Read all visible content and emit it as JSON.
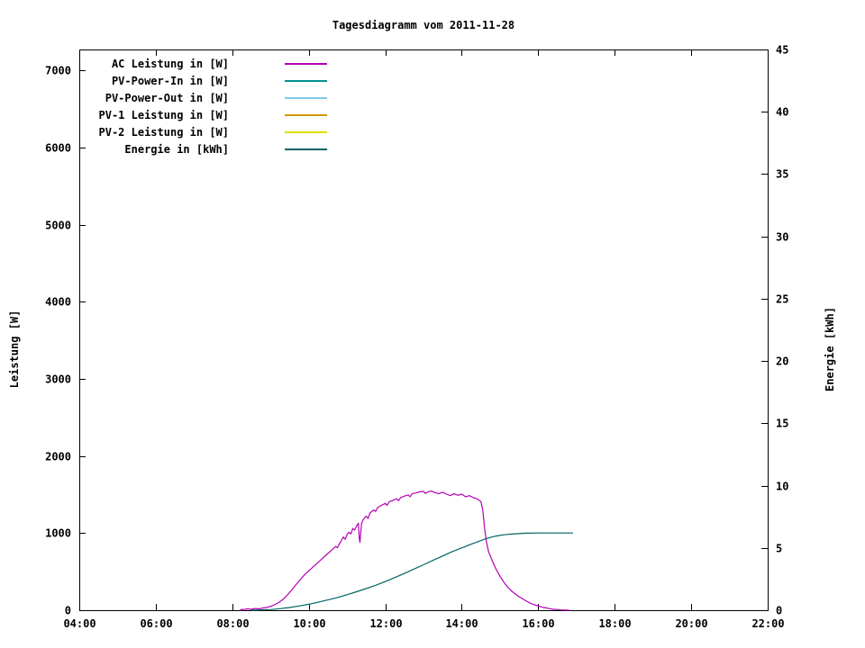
{
  "chart_data": {
    "type": "line",
    "title": "Tagesdiagramm vom 2011-11-28",
    "x_axis": {
      "tick_labels": [
        "04:00",
        "06:00",
        "08:00",
        "10:00",
        "12:00",
        "14:00",
        "16:00",
        "18:00",
        "20:00",
        "22:00"
      ],
      "tick_hours": [
        4,
        6,
        8,
        10,
        12,
        14,
        16,
        18,
        20,
        22
      ],
      "min_hour": 4,
      "max_hour": 22
    },
    "left_axis": {
      "label": "Leistung [W]",
      "ticks": [
        0,
        1000,
        2000,
        3000,
        4000,
        5000,
        6000,
        7000
      ],
      "min": 0,
      "max": 7270
    },
    "right_axis": {
      "label": "Energie [kWh]",
      "ticks": [
        0,
        5,
        10,
        15,
        20,
        25,
        30,
        35,
        40,
        45
      ],
      "min": 0,
      "max": 45
    },
    "grid": false,
    "legend_position": "top-left-inside",
    "series": [
      {
        "name": "AC Leistung in [W]",
        "color": "#b400b4",
        "axis": "left",
        "points": [
          [
            8.2,
            0
          ],
          [
            8.25,
            12
          ],
          [
            8.3,
            8
          ],
          [
            8.4,
            18
          ],
          [
            8.5,
            12
          ],
          [
            8.6,
            22
          ],
          [
            8.7,
            18
          ],
          [
            8.8,
            28
          ],
          [
            8.9,
            35
          ],
          [
            9.0,
            50
          ],
          [
            9.1,
            70
          ],
          [
            9.2,
            95
          ],
          [
            9.3,
            130
          ],
          [
            9.4,
            175
          ],
          [
            9.5,
            230
          ],
          [
            9.6,
            290
          ],
          [
            9.7,
            350
          ],
          [
            9.8,
            410
          ],
          [
            9.9,
            465
          ],
          [
            10.0,
            510
          ],
          [
            10.1,
            555
          ],
          [
            10.2,
            600
          ],
          [
            10.3,
            645
          ],
          [
            10.4,
            690
          ],
          [
            10.5,
            735
          ],
          [
            10.6,
            780
          ],
          [
            10.7,
            825
          ],
          [
            10.75,
            810
          ],
          [
            10.8,
            860
          ],
          [
            10.85,
            900
          ],
          [
            10.9,
            950
          ],
          [
            10.95,
            920
          ],
          [
            11.0,
            980
          ],
          [
            11.05,
            1010
          ],
          [
            11.1,
            990
          ],
          [
            11.15,
            1060
          ],
          [
            11.2,
            1040
          ],
          [
            11.25,
            1090
          ],
          [
            11.3,
            1130
          ],
          [
            11.32,
            930
          ],
          [
            11.34,
            880
          ],
          [
            11.38,
            1120
          ],
          [
            11.42,
            1170
          ],
          [
            11.5,
            1220
          ],
          [
            11.55,
            1190
          ],
          [
            11.6,
            1260
          ],
          [
            11.7,
            1300
          ],
          [
            11.75,
            1280
          ],
          [
            11.8,
            1330
          ],
          [
            11.9,
            1360
          ],
          [
            12.0,
            1385
          ],
          [
            12.05,
            1360
          ],
          [
            12.1,
            1405
          ],
          [
            12.2,
            1425
          ],
          [
            12.3,
            1445
          ],
          [
            12.35,
            1420
          ],
          [
            12.4,
            1460
          ],
          [
            12.5,
            1480
          ],
          [
            12.6,
            1495
          ],
          [
            12.65,
            1470
          ],
          [
            12.7,
            1510
          ],
          [
            12.8,
            1520
          ],
          [
            12.9,
            1535
          ],
          [
            13.0,
            1540
          ],
          [
            13.05,
            1515
          ],
          [
            13.1,
            1530
          ],
          [
            13.2,
            1545
          ],
          [
            13.3,
            1525
          ],
          [
            13.4,
            1510
          ],
          [
            13.5,
            1530
          ],
          [
            13.6,
            1505
          ],
          [
            13.7,
            1485
          ],
          [
            13.8,
            1510
          ],
          [
            13.9,
            1490
          ],
          [
            14.0,
            1505
          ],
          [
            14.1,
            1470
          ],
          [
            14.2,
            1485
          ],
          [
            14.3,
            1460
          ],
          [
            14.4,
            1445
          ],
          [
            14.5,
            1410
          ],
          [
            14.55,
            1300
          ],
          [
            14.6,
            1050
          ],
          [
            14.65,
            880
          ],
          [
            14.7,
            760
          ],
          [
            14.8,
            640
          ],
          [
            14.9,
            530
          ],
          [
            15.0,
            440
          ],
          [
            15.1,
            365
          ],
          [
            15.2,
            300
          ],
          [
            15.3,
            250
          ],
          [
            15.4,
            210
          ],
          [
            15.5,
            175
          ],
          [
            15.6,
            145
          ],
          [
            15.7,
            115
          ],
          [
            15.8,
            90
          ],
          [
            15.9,
            70
          ],
          [
            16.0,
            55
          ],
          [
            16.1,
            40
          ],
          [
            16.2,
            30
          ],
          [
            16.3,
            20
          ],
          [
            16.4,
            12
          ],
          [
            16.5,
            8
          ],
          [
            16.6,
            4
          ],
          [
            16.7,
            2
          ],
          [
            16.8,
            0
          ]
        ]
      },
      {
        "name": "PV-Power-In in [W]",
        "color": "#009090",
        "axis": "left",
        "points": []
      },
      {
        "name": "PV-Power-Out in [W]",
        "color": "#7fc9e8",
        "axis": "left",
        "points": []
      },
      {
        "name": "PV-1 Leistung in [W]",
        "color": "#cc9900",
        "axis": "left",
        "points": []
      },
      {
        "name": "PV-2 Leistung in [W]",
        "color": "#dede00",
        "axis": "left",
        "points": []
      },
      {
        "name": "Energie in [kWh]",
        "color": "#006464",
        "axis": "right",
        "points": [
          [
            8.5,
            0
          ],
          [
            9.0,
            0.05
          ],
          [
            9.25,
            0.12
          ],
          [
            9.5,
            0.22
          ],
          [
            9.75,
            0.34
          ],
          [
            10.0,
            0.48
          ],
          [
            10.25,
            0.64
          ],
          [
            10.5,
            0.82
          ],
          [
            10.75,
            1.02
          ],
          [
            11.0,
            1.24
          ],
          [
            11.25,
            1.48
          ],
          [
            11.5,
            1.73
          ],
          [
            11.75,
            2.0
          ],
          [
            12.0,
            2.3
          ],
          [
            12.25,
            2.62
          ],
          [
            12.5,
            2.95
          ],
          [
            12.75,
            3.3
          ],
          [
            13.0,
            3.65
          ],
          [
            13.25,
            4.0
          ],
          [
            13.5,
            4.35
          ],
          [
            13.75,
            4.7
          ],
          [
            14.0,
            5.0
          ],
          [
            14.25,
            5.3
          ],
          [
            14.5,
            5.58
          ],
          [
            14.6,
            5.7
          ],
          [
            14.7,
            5.8
          ],
          [
            14.8,
            5.88
          ],
          [
            14.9,
            5.95
          ],
          [
            15.0,
            6.0
          ],
          [
            15.1,
            6.05
          ],
          [
            15.2,
            6.08
          ],
          [
            15.3,
            6.11
          ],
          [
            15.5,
            6.15
          ],
          [
            15.7,
            6.18
          ],
          [
            16.0,
            6.2
          ],
          [
            16.3,
            6.2
          ],
          [
            16.6,
            6.2
          ],
          [
            16.9,
            6.2
          ]
        ]
      }
    ]
  }
}
